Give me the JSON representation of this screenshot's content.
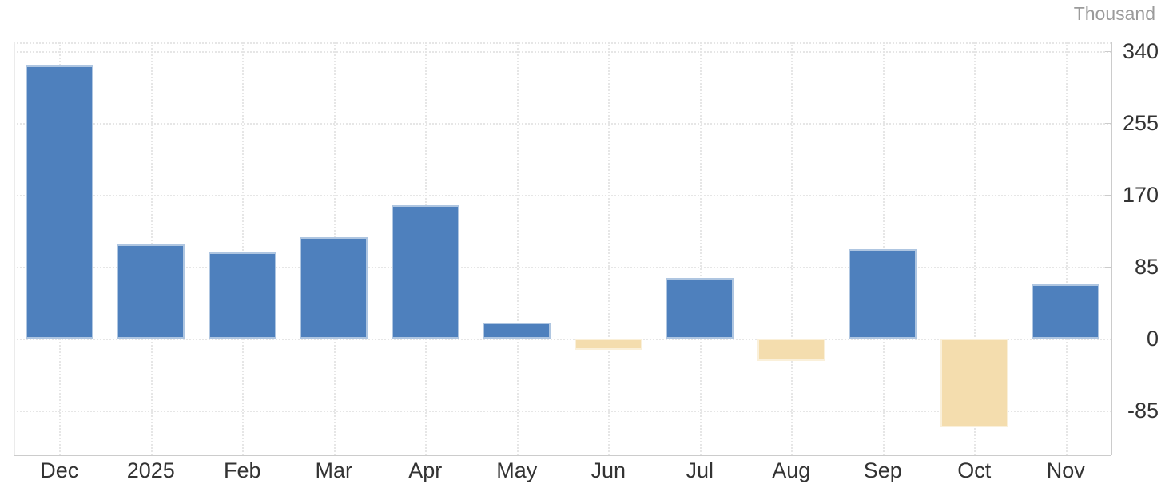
{
  "chart_data": {
    "type": "bar",
    "title": "",
    "unit_label": "Thousand",
    "categories": [
      "Dec",
      "2025",
      "Feb",
      "Mar",
      "Apr",
      "May",
      "Jun",
      "Jul",
      "Aug",
      "Sep",
      "Oct",
      "Nov"
    ],
    "values": [
      323,
      111,
      102,
      120,
      158,
      19,
      -13,
      72,
      -26,
      106,
      -105,
      64
    ],
    "yticks": [
      340,
      255,
      170,
      85,
      0,
      -85
    ],
    "ylim": [
      -138,
      350
    ],
    "xlabel": "",
    "ylabel": "Thousand",
    "grid": "dotted",
    "legend_position": "none",
    "positive_color": "#4e80bd",
    "negative_color": "#f4ddae",
    "axis_line_color": "#cccccc",
    "grid_color": "#e6e6e6",
    "tick_label_color": "#333333",
    "unit_label_color": "#9b9b9b"
  }
}
